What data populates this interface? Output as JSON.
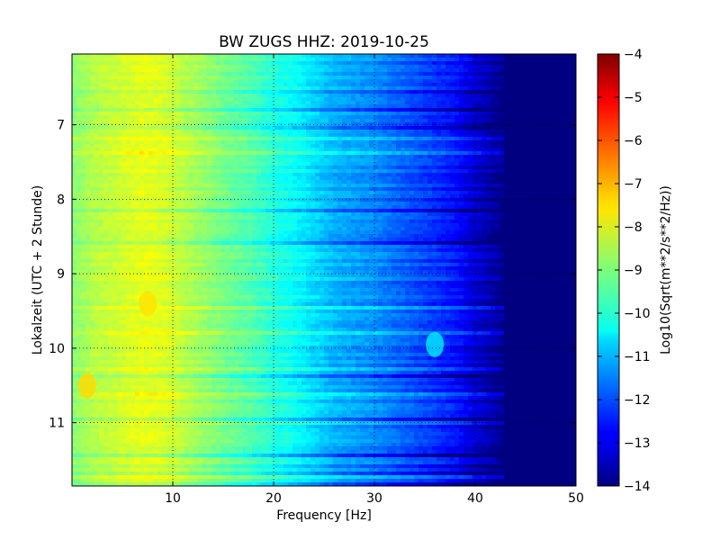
{
  "chart_data": {
    "type": "heatmap",
    "title": "BW ZUGS HHZ: 2019-10-25",
    "xlabel": "Frequency [Hz]",
    "ylabel": "Lokalzeit (UTC + 2 Stunde)",
    "xlim": [
      0,
      50
    ],
    "ylim": [
      11.85,
      6.05
    ],
    "y_axis_inverted": true,
    "xticks": [
      10,
      20,
      30,
      40,
      50
    ],
    "yticks": [
      7,
      8,
      9,
      10,
      11
    ],
    "grid": true,
    "grid_style": "dotted",
    "colormap": "jet",
    "colorbar": {
      "label": "Log10(Sqrt(m**2/s**2/Hz))",
      "range": [
        -14,
        -4
      ],
      "ticks": [
        -14,
        -13,
        -12,
        -11,
        -10,
        -9,
        -8,
        -7,
        -6,
        -5,
        -4
      ],
      "placement": "right"
    },
    "profile": {
      "frequency_hz": [
        0,
        2,
        5,
        7,
        9,
        12,
        15,
        18,
        20,
        22,
        24,
        26,
        28,
        30,
        32,
        34,
        36,
        38,
        40,
        42,
        43,
        50
      ],
      "log10_amplitude": [
        -8.9,
        -8.5,
        -8.2,
        -8.0,
        -8.1,
        -8.6,
        -9.1,
        -9.5,
        -9.9,
        -10.2,
        -10.6,
        -11.0,
        -11.2,
        -11.4,
        -11.7,
        -12.0,
        -12.3,
        -12.6,
        -13.2,
        -13.7,
        -14.0,
        -14.0
      ]
    },
    "features": [
      {
        "frequency_hz": 7.5,
        "time": 9.4,
        "log10_amplitude": -7.5
      },
      {
        "frequency_hz": 1.5,
        "time": 10.5,
        "log10_amplitude": -7.4
      },
      {
        "frequency_hz": 36,
        "time": 9.95,
        "log10_amplitude": -10.5
      }
    ]
  }
}
